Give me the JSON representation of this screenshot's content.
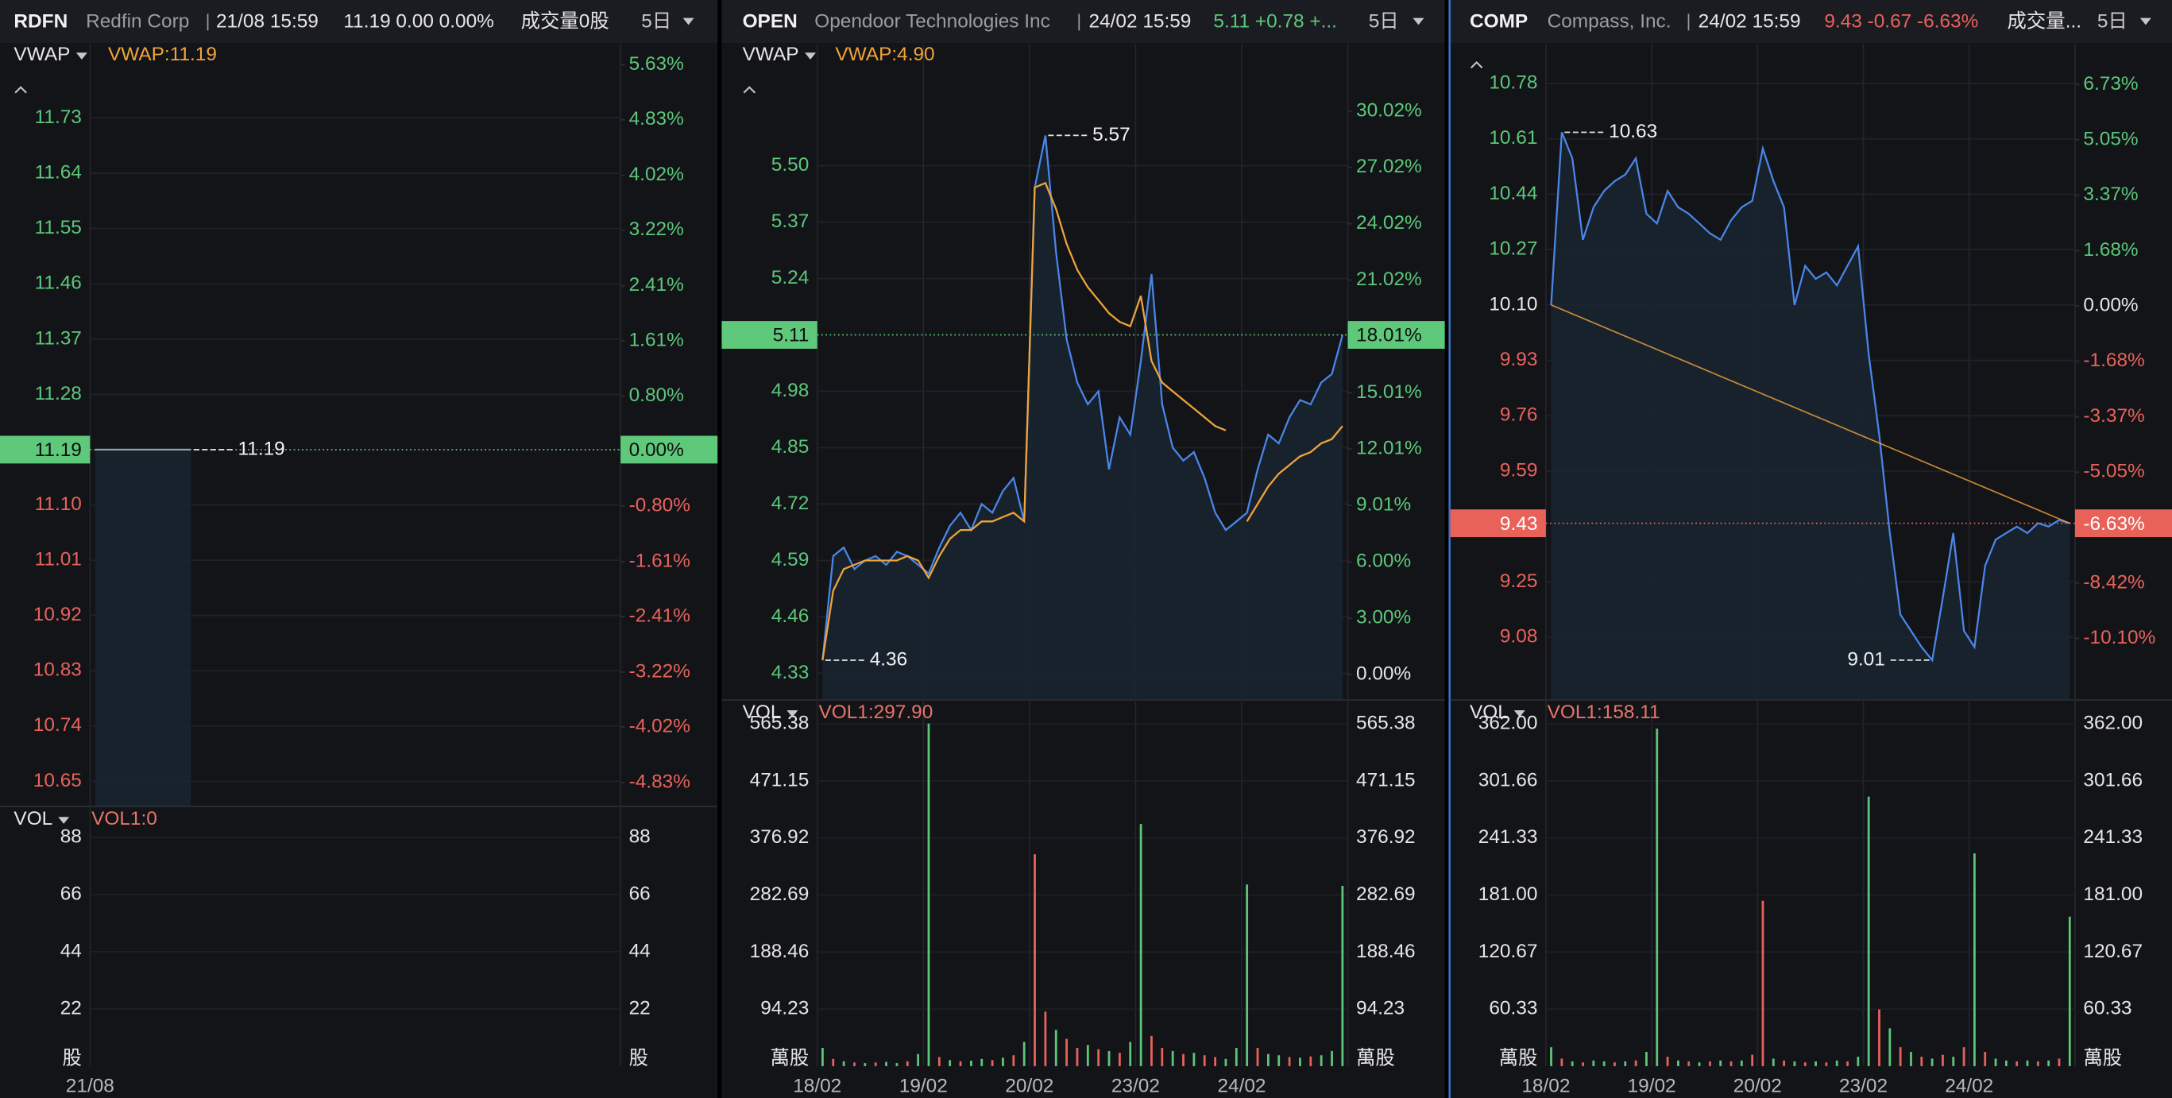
{
  "colors": {
    "up": "#5cc77a",
    "down": "#e8625a",
    "flat": "#e6e6e6",
    "line": "#4a86e8",
    "vwap": "#f0a43a",
    "vol_value": "#e8746a"
  },
  "panels": [
    {
      "symbol": "RDFN",
      "name": "Redfin Corp",
      "time": "21/08 15:59",
      "quote": "11.19 0.00 0.00%",
      "quote_color": "#e6e6e6",
      "volume_text": "成交量0股",
      "period": "5日",
      "indicator": "VWAP",
      "indicator_value": "VWAP:11.19",
      "ylim": [
        10.61,
        11.85
      ],
      "y2lim": [
        -5.17,
        5.93
      ],
      "price_ticks": [
        11.73,
        11.64,
        11.55,
        11.46,
        11.37,
        11.28,
        {
          "value": 11.1,
          "label": "11.10"
        },
        11.01,
        10.92,
        10.83,
        10.74,
        10.65
      ],
      "pct_ticks": [
        {
          "value": 5.63,
          "label": "5.63%"
        },
        {
          "value": 4.83,
          "label": "4.83%"
        },
        {
          "value": 4.02,
          "label": "4.02%"
        },
        {
          "value": 3.22,
          "label": "3.22%"
        },
        {
          "value": 2.41,
          "label": "2.41%"
        },
        {
          "value": 1.61,
          "label": "1.61%"
        },
        {
          "value": 0.8,
          "label": "0.80%"
        },
        {
          "value": -0.8,
          "label": "-0.80%"
        },
        {
          "value": -1.61,
          "label": "-1.61%"
        },
        {
          "value": -2.41,
          "label": "-2.41%"
        },
        {
          "value": -3.22,
          "label": "-3.22%"
        },
        {
          "value": -4.02,
          "label": "-4.02%"
        },
        {
          "value": -4.83,
          "label": "-4.83%"
        }
      ],
      "price": [
        11.19,
        11.19,
        11.19,
        11.19,
        11.19,
        11.19,
        11.19,
        11.19,
        11.19,
        11.19
      ],
      "last_price": 11.19,
      "last_pct": {
        "value": 0,
        "label": "0.00%"
      },
      "high": 11.19,
      "vol_label": "VOL",
      "vol_value": "VOL1:0",
      "vlim": [
        0,
        91.6
      ],
      "vol_ticks": [
        88,
        66,
        44,
        22
      ],
      "vol_unit": "股",
      "dates": [
        "21/08"
      ]
    },
    {
      "symbol": "OPEN",
      "name": "Opendoor Technologies Inc",
      "time": "24/02 15:59",
      "quote": "5.11 +0.78 +...",
      "quote_color": "#5cc77a",
      "period": "5日",
      "indicator": "VWAP",
      "indicator_value": "VWAP:4.90",
      "ylim": [
        4.27,
        5.78
      ],
      "y2lim": [
        -1.32,
        33.58
      ],
      "price_ticks": [
        {
          "value": 5.5,
          "label": "5.50"
        },
        5.37,
        5.24,
        4.98,
        4.85,
        4.72,
        4.59,
        4.46,
        4.33
      ],
      "pct_ticks": [
        {
          "value": 30.02,
          "label": "30.02%"
        },
        {
          "value": 27.02,
          "label": "27.02%"
        },
        {
          "value": 24.02,
          "label": "24.02%"
        },
        {
          "value": 21.02,
          "label": "21.02%"
        },
        {
          "value": 15.01,
          "label": "15.01%"
        },
        {
          "value": 12.01,
          "label": "12.01%"
        },
        {
          "value": 9.01,
          "label": "9.01%"
        },
        {
          "value": 6,
          "label": "6.00%"
        },
        {
          "value": 3,
          "label": "3.00%"
        },
        {
          "value": 0,
          "label": "0.00%"
        }
      ],
      "price": [
        4.36,
        4.6,
        4.62,
        4.57,
        4.59,
        4.6,
        4.58,
        4.61,
        4.6,
        4.58,
        4.56,
        4.62,
        4.67,
        4.7,
        4.66,
        4.72,
        4.7,
        4.75,
        4.78,
        4.68,
        5.45,
        5.57,
        5.3,
        5.1,
        5.0,
        4.95,
        4.98,
        4.8,
        4.92,
        4.88,
        5.05,
        5.25,
        4.95,
        4.85,
        4.82,
        4.84,
        4.78,
        4.7,
        4.66,
        4.68,
        4.7,
        4.8,
        4.88,
        4.86,
        4.92,
        4.96,
        4.95,
        5.0,
        5.02,
        5.11
      ],
      "vwap": [
        4.36,
        4.52,
        4.57,
        4.58,
        4.59,
        4.59,
        4.59,
        4.59,
        4.6,
        4.59,
        4.55,
        4.6,
        4.64,
        4.66,
        4.66,
        4.68,
        4.68,
        4.69,
        4.7,
        4.68,
        5.45,
        5.46,
        5.4,
        5.32,
        5.26,
        5.22,
        5.19,
        5.16,
        5.14,
        5.13,
        5.2,
        5.05,
        5.0,
        4.98,
        4.96,
        4.94,
        4.92,
        4.9,
        4.89,
        null,
        4.68,
        4.72,
        4.76,
        4.79,
        4.81,
        4.83,
        4.84,
        4.86,
        4.87,
        4.9
      ],
      "last_price": 5.11,
      "last_pct": {
        "value": 18.01,
        "label": "18.01%"
      },
      "high": 5.57,
      "low": 4.36,
      "vol_label": "VOL",
      "vol_value": "VOL1:297.90",
      "vlim": [
        0,
        571.8
      ],
      "vol_ticks": [
        565.38,
        471.15,
        376.92,
        282.69,
        188.46,
        94.23
      ],
      "vol_unit": "萬股",
      "volume": [
        30,
        12,
        8,
        6,
        5,
        6,
        7,
        5,
        8,
        20,
        566,
        15,
        10,
        8,
        9,
        12,
        10,
        14,
        18,
        40,
        350,
        90,
        60,
        45,
        30,
        35,
        28,
        25,
        22,
        40,
        400,
        50,
        30,
        25,
        20,
        22,
        18,
        15,
        12,
        30,
        300,
        30,
        20,
        18,
        15,
        14,
        16,
        18,
        25,
        297.9
      ],
      "volume_up": [
        true,
        false,
        true,
        false,
        true,
        false,
        true,
        true,
        false,
        true,
        true,
        false,
        true,
        false,
        true,
        true,
        false,
        true,
        false,
        true,
        false,
        false,
        true,
        false,
        false,
        true,
        false,
        true,
        false,
        true,
        true,
        false,
        false,
        true,
        false,
        true,
        false,
        false,
        true,
        true,
        true,
        false,
        true,
        true,
        false,
        true,
        false,
        true,
        true,
        true
      ],
      "dates": [
        "18/02",
        "19/02",
        "20/02",
        "23/02",
        "24/02"
      ]
    },
    {
      "symbol": "COMP",
      "name": "Compass, Inc.",
      "time": "24/02 15:59",
      "quote": "9.43 -0.67 -6.63%",
      "quote_color": "#e8625a",
      "volume_text": "成交量...",
      "period": "5日",
      "ylim": [
        8.89,
        10.9
      ],
      "y2lim": [
        -11.95,
        7.95
      ],
      "price_ticks": [
        10.78,
        10.61,
        10.44,
        10.27,
        {
          "value": 10.1,
          "label": "10.10"
        },
        9.93,
        9.76,
        9.59,
        9.25,
        9.08
      ],
      "pct_ticks": [
        {
          "value": 6.73,
          "label": "6.73%"
        },
        {
          "value": 5.05,
          "label": "5.05%"
        },
        {
          "value": 3.37,
          "label": "3.37%"
        },
        {
          "value": 1.68,
          "label": "1.68%"
        },
        {
          "value": 0,
          "label": "0.00%"
        },
        {
          "value": -1.68,
          "label": "-1.68%"
        },
        {
          "value": -3.37,
          "label": "-3.37%"
        },
        {
          "value": -5.05,
          "label": "-5.05%"
        },
        {
          "value": -8.42,
          "label": "-8.42%"
        },
        {
          "value": -10.1,
          "label": "-10.10%"
        }
      ],
      "price": [
        10.1,
        10.63,
        10.55,
        10.3,
        10.4,
        10.45,
        10.48,
        10.5,
        10.55,
        10.38,
        10.35,
        10.45,
        10.4,
        10.38,
        10.35,
        10.32,
        10.3,
        10.36,
        10.4,
        10.42,
        10.58,
        10.48,
        10.4,
        10.1,
        10.22,
        10.18,
        10.2,
        10.16,
        10.22,
        10.28,
        9.95,
        9.7,
        9.4,
        9.15,
        9.1,
        9.05,
        9.01,
        9.2,
        9.4,
        9.1,
        9.05,
        9.3,
        9.38,
        9.4,
        9.42,
        9.4,
        9.43,
        9.42,
        9.44,
        9.43
      ],
      "last_price": 9.43,
      "last_pct": {
        "value": -6.63,
        "label": "-6.63%"
      },
      "high": 10.63,
      "low": 9.01,
      "vol_label": "VOL",
      "vol_value": "VOL1:158.11",
      "vlim": [
        0,
        366.1
      ],
      "vol_ticks": [
        {
          "value": 362,
          "label": "362.00"
        },
        301.66,
        241.33,
        {
          "value": 181,
          "label": "181.00"
        },
        120.67,
        60.33
      ],
      "vol_unit": "萬股",
      "volume": [
        20,
        8,
        5,
        4,
        6,
        5,
        4,
        5,
        6,
        15,
        357,
        10,
        6,
        5,
        4,
        5,
        6,
        5,
        6,
        12,
        175,
        8,
        6,
        5,
        4,
        5,
        4,
        6,
        5,
        10,
        285,
        60,
        40,
        20,
        15,
        10,
        8,
        12,
        10,
        20,
        225,
        15,
        8,
        6,
        5,
        6,
        5,
        6,
        8,
        158.11
      ],
      "volume_up": [
        true,
        false,
        true,
        false,
        true,
        true,
        false,
        true,
        false,
        true,
        true,
        false,
        true,
        false,
        true,
        false,
        true,
        false,
        true,
        false,
        false,
        true,
        false,
        true,
        false,
        true,
        false,
        true,
        false,
        true,
        true,
        false,
        true,
        false,
        true,
        false,
        true,
        false,
        true,
        false,
        true,
        false,
        true,
        true,
        false,
        true,
        false,
        true,
        false,
        true
      ],
      "dates": [
        "18/02",
        "19/02",
        "20/02",
        "23/02",
        "24/02"
      ]
    }
  ]
}
